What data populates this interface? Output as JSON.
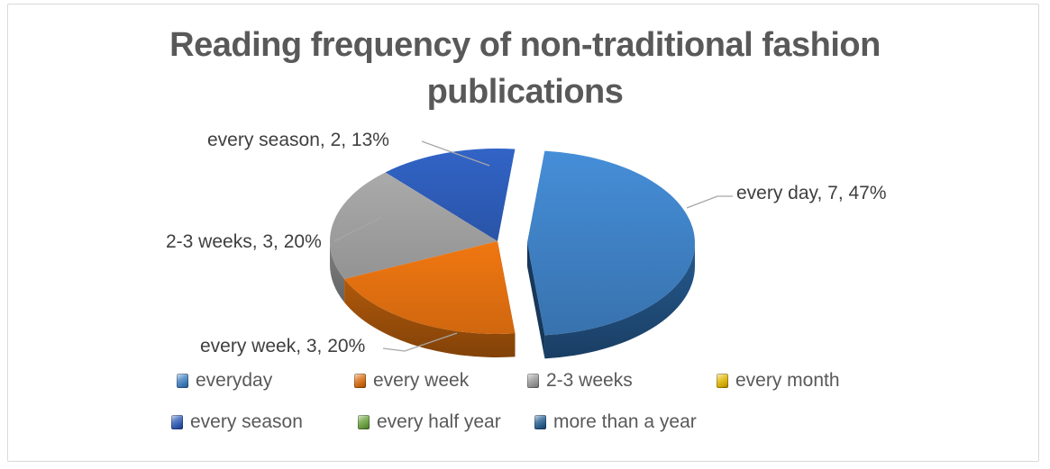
{
  "window": {
    "background": "#ffffff",
    "border_color": "#d9d9d9",
    "title_color": "#595959",
    "label_color": "#3f3f3f",
    "leader_line_color": "#a6a6a6"
  },
  "chart_data": {
    "type": "pie",
    "style": "3d-exploded",
    "title": "Reading frequency of non-traditional fashion publications",
    "categories": [
      "everyday",
      "every week",
      "2-3 weeks",
      "every month",
      "every season",
      "every half year",
      "more than a year"
    ],
    "values": [
      7,
      3,
      3,
      0,
      2,
      0,
      0
    ],
    "total": 15,
    "start_angle_deg": 6,
    "legend_position": "bottom",
    "slices": [
      {
        "name": "every day",
        "value": 7,
        "pct": 47,
        "label": "every day, 7, 47%",
        "color_top": "#3e7fc1",
        "color_side": "#215080",
        "exploded": true
      },
      {
        "name": "every week",
        "value": 3,
        "pct": 20,
        "label": "every week, 3, 20%",
        "color_top": "#e06f10",
        "color_side": "#a3520a",
        "exploded": false
      },
      {
        "name": "2-3 weeks",
        "value": 3,
        "pct": 20,
        "label": "2-3 weeks, 3, 20%",
        "color_top": "#a0a0a0",
        "color_side": "#7a7a7a",
        "exploded": false
      },
      {
        "name": "every season",
        "value": 2,
        "pct": 13,
        "label": "every season, 2, 13%",
        "color_top": "#2d5bb5",
        "color_side": "#21437f",
        "exploded": false
      }
    ],
    "legend": [
      {
        "label": "everyday",
        "color": "#3e7fc1"
      },
      {
        "label": "every week",
        "color": "#d96b0c"
      },
      {
        "label": "2-3 weeks",
        "color": "#9a9a9a"
      },
      {
        "label": "every month",
        "color": "#e2b700"
      },
      {
        "label": "every season",
        "color": "#2d59b6"
      },
      {
        "label": "every half year",
        "color": "#6aa23c"
      },
      {
        "label": "more than a year",
        "color": "#255e91"
      }
    ]
  }
}
